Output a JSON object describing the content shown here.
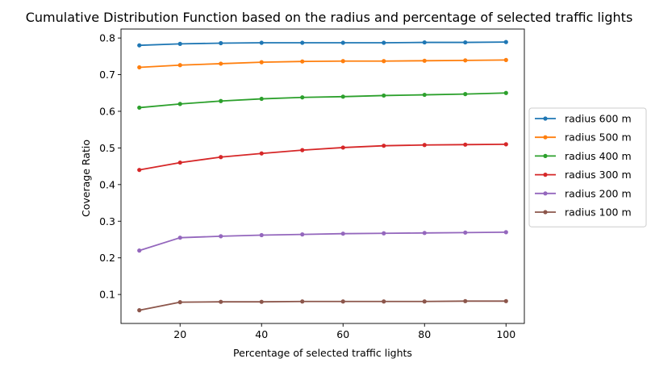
{
  "chart_data": {
    "type": "line",
    "title": "Cumulative Distribution Function based on the radius and percentage of selected traffic lights",
    "xlabel": "Percentage of selected traffic lights",
    "ylabel": "Coverage Ratio",
    "xlim": [
      5.5,
      104.5
    ],
    "ylim": [
      0.021,
      0.8245
    ],
    "xticks": [
      20,
      40,
      60,
      80,
      100
    ],
    "yticks": [
      0.1,
      0.2,
      0.3,
      0.4,
      0.5,
      0.6,
      0.7,
      0.8
    ],
    "ytick_labels": [
      "0.1",
      "0.2",
      "0.3",
      "0.4",
      "0.5",
      "0.6",
      "0.7",
      "0.8"
    ],
    "grid": false,
    "legend_position": "outside-right",
    "x": [
      10,
      20,
      30,
      40,
      50,
      60,
      70,
      80,
      90,
      100
    ],
    "series": [
      {
        "name": "radius 600 m",
        "color": "#1f77b4",
        "values": [
          0.78,
          0.784,
          0.786,
          0.787,
          0.787,
          0.787,
          0.787,
          0.788,
          0.788,
          0.789
        ]
      },
      {
        "name": "radius 500 m",
        "color": "#ff7f0e",
        "values": [
          0.72,
          0.726,
          0.73,
          0.734,
          0.736,
          0.737,
          0.737,
          0.738,
          0.739,
          0.74
        ]
      },
      {
        "name": "radius 400 m",
        "color": "#2ca02c",
        "values": [
          0.61,
          0.62,
          0.628,
          0.634,
          0.638,
          0.64,
          0.643,
          0.645,
          0.647,
          0.65
        ]
      },
      {
        "name": "radius 300 m",
        "color": "#d62728",
        "values": [
          0.44,
          0.46,
          0.475,
          0.485,
          0.494,
          0.501,
          0.506,
          0.508,
          0.509,
          0.51
        ]
      },
      {
        "name": "radius 200 m",
        "color": "#9467bd",
        "values": [
          0.22,
          0.255,
          0.259,
          0.262,
          0.264,
          0.266,
          0.267,
          0.268,
          0.269,
          0.27
        ]
      },
      {
        "name": "radius 100 m",
        "color": "#8c564b",
        "values": [
          0.057,
          0.079,
          0.08,
          0.08,
          0.081,
          0.081,
          0.081,
          0.081,
          0.082,
          0.082
        ]
      }
    ]
  }
}
